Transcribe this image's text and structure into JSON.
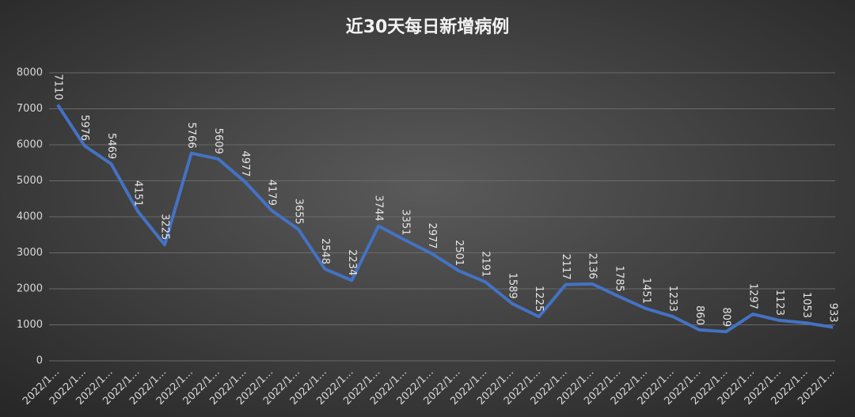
{
  "chart_data": {
    "type": "line",
    "title": "近30天每日新增病例",
    "categories": [
      "2022/1…",
      "2022/1…",
      "2022/1…",
      "2022/1…",
      "2022/1…",
      "2022/1…",
      "2022/1…",
      "2022/1…",
      "2022/1…",
      "2022/1…",
      "2022/1…",
      "2022/1…",
      "2022/1…",
      "2022/1…",
      "2022/1…",
      "2022/1…",
      "2022/1…",
      "2022/1…",
      "2022/1…",
      "2022/1…",
      "2022/1…",
      "2022/1…",
      "2022/1…",
      "2022/1…",
      "2022/1…",
      "2022/1…",
      "2022/1…",
      "2022/1…",
      "2022/1…",
      "2022/1…"
    ],
    "values": [
      7110,
      5976,
      5469,
      4151,
      3225,
      5766,
      5609,
      4977,
      4179,
      3655,
      2548,
      2234,
      3744,
      3351,
      2977,
      2501,
      2191,
      1589,
      1225,
      2117,
      2136,
      1785,
      1451,
      1233,
      860,
      809,
      1297,
      1123,
      1053,
      933
    ],
    "color": "#4472c4",
    "ylim": [
      0,
      8000
    ],
    "yticks": [
      0,
      1000,
      2000,
      3000,
      4000,
      5000,
      6000,
      7000,
      8000
    ],
    "grid": true
  }
}
